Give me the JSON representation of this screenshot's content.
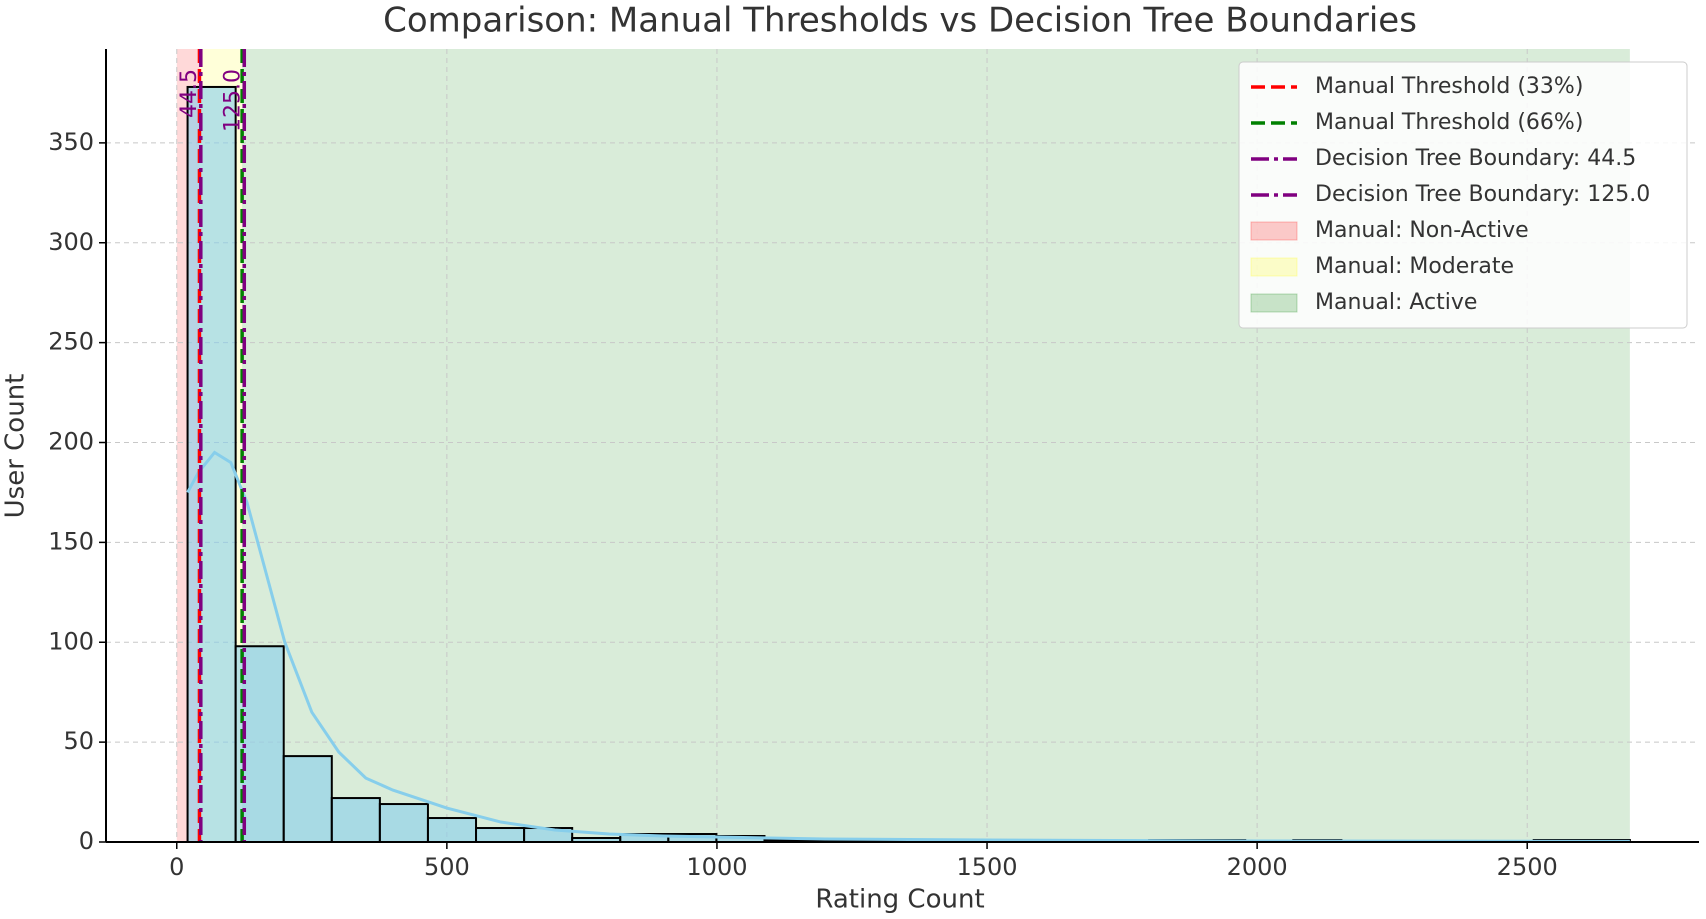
{
  "chart_data": {
    "type": "histogram",
    "title": "Comparison: Manual Thresholds vs Decision Tree Boundaries",
    "x_label": "Rating Count",
    "y_label": "User Count",
    "bins": [
      20,
      109,
      198,
      287,
      376,
      465,
      554,
      643,
      732,
      821,
      910,
      999,
      1088,
      1177,
      1266,
      1355,
      1444,
      1533,
      1622,
      1711,
      1800,
      1889,
      1978,
      2067,
      2156,
      2245,
      2334,
      2423,
      2512,
      2601,
      2690
    ],
    "counts": [
      378,
      98,
      43,
      22,
      19,
      12,
      7,
      7,
      2,
      4,
      4,
      3,
      1,
      1,
      1,
      1,
      0,
      0,
      0,
      0,
      1,
      1,
      0,
      1,
      0,
      0,
      0,
      0,
      1,
      1
    ],
    "bar_color": "#87ceeb",
    "kde": {
      "color": "#87ceeb",
      "x": [
        20,
        40,
        70,
        100,
        130,
        160,
        200,
        250,
        300,
        350,
        400,
        500,
        600,
        700,
        800,
        900,
        1000,
        1200,
        1500,
        2000,
        2690
      ],
      "y": [
        175,
        185,
        195,
        190,
        170,
        140,
        100,
        65,
        45,
        32,
        26,
        17,
        10,
        6,
        4,
        3,
        2.5,
        1.5,
        1,
        0.5,
        0.3
      ]
    },
    "lines": [
      {
        "name": "Manual Threshold (33%)",
        "value": 42,
        "color": "red",
        "style": "dashed"
      },
      {
        "name": "Manual Threshold (66%)",
        "value": 121,
        "color": "green",
        "style": "dashed"
      },
      {
        "name": "Decision Tree Boundary: 44.5",
        "value": 44.5,
        "color": "purple",
        "style": "dashdot"
      },
      {
        "name": "Decision Tree Boundary: 125.0",
        "value": 125,
        "color": "purple",
        "style": "dashdot"
      }
    ],
    "regions": [
      {
        "name": "Manual: Non-Active",
        "start": 0,
        "end": 42,
        "color": "red"
      },
      {
        "name": "Manual: Moderate",
        "start": 42,
        "end": 121,
        "color": "yellow"
      },
      {
        "name": "Manual: Active",
        "start": 121,
        "end": 2690,
        "color": "green"
      }
    ],
    "annotations": [
      {
        "text": "44.5",
        "x": 44.5,
        "color": "purple"
      },
      {
        "text": "125.0",
        "x": 125,
        "color": "purple"
      }
    ],
    "xlim": [
      -131,
      2818
    ],
    "ylim": [
      0,
      397
    ],
    "xticks": [
      0,
      500,
      1000,
      1500,
      2000,
      2500
    ],
    "yticks": [
      0,
      50,
      100,
      150,
      200,
      250,
      300,
      350
    ],
    "grid": true,
    "legend": "upper right"
  }
}
